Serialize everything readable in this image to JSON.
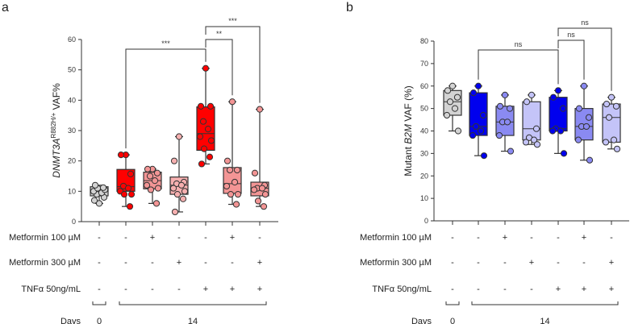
{
  "chart_data": [
    {
      "type": "box",
      "panel_label": "a",
      "ylabel_italic": "DNMT3A",
      "ylabel_sup": "R882H/+",
      "ylabel_rest": " VAF%",
      "ylim": [
        0,
        60
      ],
      "yticks": [
        0,
        10,
        20,
        30,
        40,
        50,
        60
      ],
      "groups": [
        {
          "color": "#d3d3d3",
          "box": {
            "min": 6,
            "q1": 8.5,
            "median": 10,
            "q3": 11.5,
            "max": 12
          },
          "points": [
            6,
            7,
            8,
            9,
            9.5,
            10,
            10.5,
            11,
            11.2,
            12
          ]
        },
        {
          "color": "#ff0000",
          "box": {
            "min": 5,
            "q1": 10,
            "median": 11.5,
            "q3": 17.2,
            "max": 22
          },
          "points": [
            22,
            22,
            15.7,
            11.7,
            11,
            10,
            9,
            9,
            5
          ]
        },
        {
          "color": "#f39595",
          "box": {
            "min": 6,
            "q1": 10.8,
            "median": 13.5,
            "q3": 16.3,
            "max": 17.3
          },
          "points": [
            17.3,
            17.3,
            16,
            15,
            13.5,
            12,
            11,
            10.5,
            6
          ]
        },
        {
          "color": "#f6b0b0",
          "box": {
            "min": 3.2,
            "q1": 9,
            "median": 12,
            "q3": 14.7,
            "max": 28
          },
          "points": [
            28,
            20,
            13,
            12.5,
            12,
            11,
            10,
            9,
            7.5,
            3.2
          ]
        },
        {
          "color": "#ff0000",
          "box": {
            "min": 19,
            "q1": 23.5,
            "median": 29,
            "q3": 37.8,
            "max": 50.5
          },
          "points": [
            50.5,
            38,
            38,
            33,
            30.5,
            28,
            26.7,
            24,
            21.3,
            19
          ]
        },
        {
          "color": "#f39595",
          "box": {
            "min": 5.7,
            "q1": 9.3,
            "median": 12.5,
            "q3": 17.8,
            "max": 39.5
          },
          "points": [
            39.5,
            20,
            17,
            17,
            13,
            11.7,
            9,
            9,
            5.7
          ]
        },
        {
          "color": "#f39595",
          "box": {
            "min": 5,
            "q1": 8.5,
            "median": 11,
            "q3": 13,
            "max": 37
          },
          "points": [
            37,
            16,
            12,
            11,
            11,
            10.5,
            9,
            6.8,
            5
          ]
        }
      ],
      "comparisons": [
        {
          "from": 2,
          "to": 5,
          "label": "***"
        },
        {
          "from": 5,
          "to": 6,
          "label": "**"
        },
        {
          "from": 5,
          "to": 7,
          "label": "***"
        }
      ]
    },
    {
      "type": "box",
      "panel_label": "b",
      "ylabel_pre": "Mutant ",
      "ylabel_italic": "B2M",
      "ylabel_rest": "  VAF (%)",
      "ylim": [
        0,
        80
      ],
      "yticks": [
        0,
        10,
        20,
        30,
        40,
        50,
        60,
        70,
        80
      ],
      "groups": [
        {
          "color": "#d3d3d3",
          "box": {
            "min": 40,
            "q1": 47,
            "median": 53,
            "q3": 58,
            "max": 60
          },
          "points": [
            60,
            58,
            55,
            53,
            50,
            47,
            40
          ]
        },
        {
          "color": "#0000ee",
          "box": {
            "min": 29,
            "q1": 38,
            "median": 42,
            "q3": 57,
            "max": 60
          },
          "points": [
            60,
            57,
            47,
            42,
            40,
            38,
            29
          ]
        },
        {
          "color": "#8a8af2",
          "box": {
            "min": 31,
            "q1": 38,
            "median": 44,
            "q3": 51,
            "max": 56
          },
          "points": [
            56,
            51,
            50,
            44,
            44,
            38,
            31
          ]
        },
        {
          "color": "#c4c4f8",
          "box": {
            "min": 34,
            "q1": 36,
            "median": 41,
            "q3": 53,
            "max": 56
          },
          "points": [
            56,
            53,
            41,
            37,
            36,
            35,
            34
          ]
        },
        {
          "color": "#0000ee",
          "box": {
            "min": 30,
            "q1": 40,
            "median": 41,
            "q3": 55,
            "max": 58
          },
          "points": [
            58,
            55,
            50,
            41,
            40,
            40,
            30
          ]
        },
        {
          "color": "#8a8af2",
          "box": {
            "min": 27,
            "q1": 36,
            "median": 42,
            "q3": 50,
            "max": 60
          },
          "points": [
            60,
            50,
            46,
            42,
            42,
            36,
            27
          ]
        },
        {
          "color": "#c4c4f8",
          "box": {
            "min": 32,
            "q1": 35,
            "median": 46,
            "q3": 52,
            "max": 55
          },
          "points": [
            55,
            52,
            51,
            46,
            36,
            35,
            32
          ]
        }
      ],
      "comparisons": [
        {
          "from": 2,
          "to": 5,
          "label": "ns"
        },
        {
          "from": 5,
          "to": 6,
          "label": "ns"
        },
        {
          "from": 5,
          "to": 7,
          "label": "ns"
        }
      ]
    }
  ],
  "conditions": [
    {
      "label": "Metformin 100 µM",
      "signs": [
        "-",
        "-",
        "+",
        "-",
        "-",
        "+",
        "-"
      ]
    },
    {
      "label": "Metformin 300 µM",
      "signs": [
        "-",
        "-",
        "-",
        "+",
        "-",
        "-",
        "+"
      ]
    },
    {
      "label": "TNFα 50ng/mL",
      "signs": [
        "-",
        "-",
        "-",
        "-",
        "+",
        "+",
        "+"
      ]
    }
  ],
  "days": {
    "label": "Days",
    "groups": [
      {
        "value": "0",
        "from": 1,
        "to": 1
      },
      {
        "value": "14",
        "from": 2,
        "to": 7
      }
    ]
  }
}
